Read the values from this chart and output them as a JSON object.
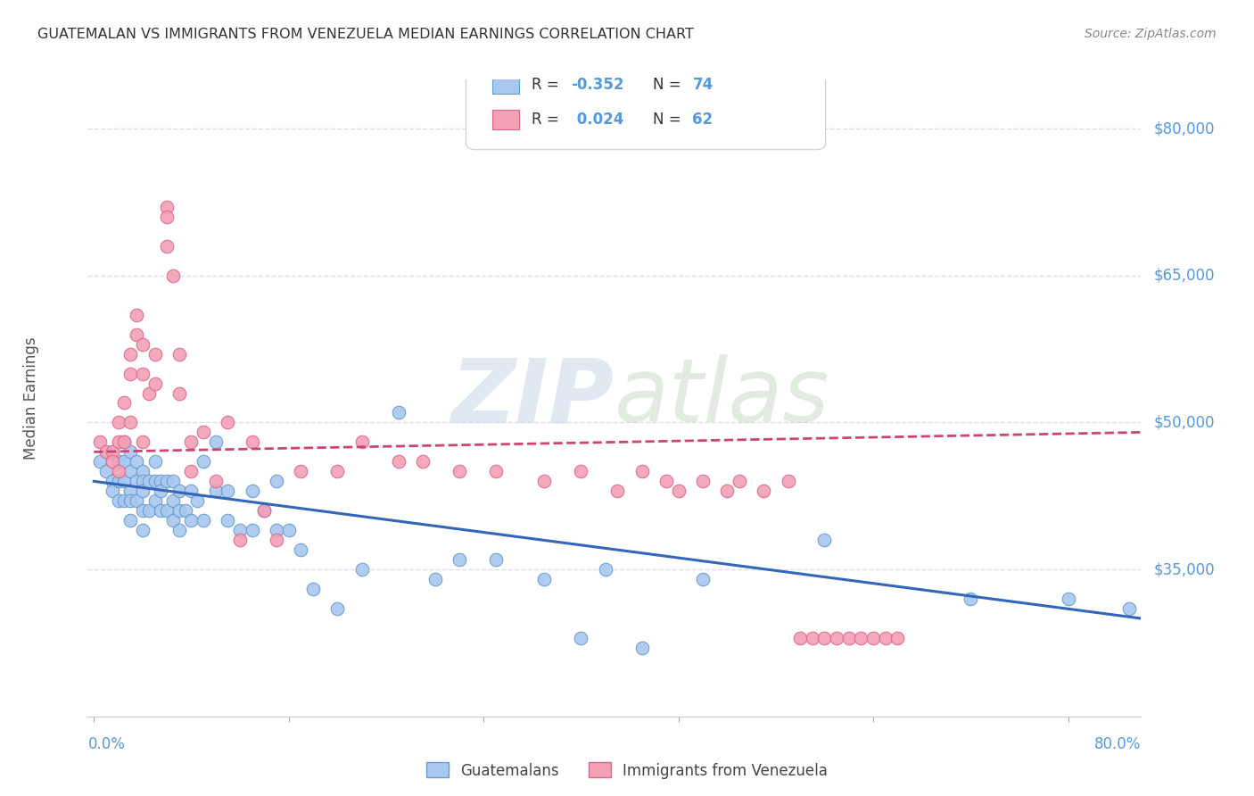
{
  "title": "GUATEMALAN VS IMMIGRANTS FROM VENEZUELA MEDIAN EARNINGS CORRELATION CHART",
  "source": "Source: ZipAtlas.com",
  "ylabel": "Median Earnings",
  "ymin": 20000,
  "ymax": 85000,
  "xmin": -0.005,
  "xmax": 0.86,
  "watermark_zip": "ZIP",
  "watermark_atlas": "atlas",
  "blue_color": "#A8C8F0",
  "pink_color": "#F4A0B5",
  "blue_edge_color": "#6699CC",
  "pink_edge_color": "#DD6688",
  "blue_line_color": "#3366BB",
  "pink_line_color": "#CC4477",
  "grid_color": "#DDDDEE",
  "axis_label_color": "#5599DD",
  "title_color": "#333333",
  "blue_scatter_x": [
    0.005,
    0.01,
    0.015,
    0.015,
    0.02,
    0.02,
    0.02,
    0.025,
    0.025,
    0.025,
    0.025,
    0.03,
    0.03,
    0.03,
    0.03,
    0.03,
    0.035,
    0.035,
    0.035,
    0.04,
    0.04,
    0.04,
    0.04,
    0.04,
    0.045,
    0.045,
    0.05,
    0.05,
    0.05,
    0.055,
    0.055,
    0.055,
    0.06,
    0.06,
    0.065,
    0.065,
    0.065,
    0.07,
    0.07,
    0.07,
    0.075,
    0.08,
    0.08,
    0.085,
    0.09,
    0.09,
    0.1,
    0.1,
    0.11,
    0.11,
    0.12,
    0.13,
    0.13,
    0.14,
    0.15,
    0.15,
    0.16,
    0.17,
    0.18,
    0.2,
    0.22,
    0.25,
    0.28,
    0.3,
    0.33,
    0.37,
    0.4,
    0.42,
    0.45,
    0.5,
    0.6,
    0.72,
    0.8,
    0.85
  ],
  "blue_scatter_y": [
    46000,
    45000,
    44000,
    43000,
    46000,
    44000,
    42000,
    48000,
    46000,
    44000,
    42000,
    47000,
    45000,
    43000,
    42000,
    40000,
    46000,
    44000,
    42000,
    45000,
    44000,
    43000,
    41000,
    39000,
    44000,
    41000,
    46000,
    44000,
    42000,
    44000,
    43000,
    41000,
    44000,
    41000,
    44000,
    42000,
    40000,
    43000,
    41000,
    39000,
    41000,
    43000,
    40000,
    42000,
    46000,
    40000,
    48000,
    43000,
    43000,
    40000,
    39000,
    43000,
    39000,
    41000,
    44000,
    39000,
    39000,
    37000,
    33000,
    31000,
    35000,
    51000,
    34000,
    36000,
    36000,
    34000,
    28000,
    35000,
    27000,
    34000,
    38000,
    32000,
    32000,
    31000
  ],
  "pink_scatter_x": [
    0.005,
    0.01,
    0.015,
    0.015,
    0.02,
    0.02,
    0.02,
    0.025,
    0.025,
    0.03,
    0.03,
    0.03,
    0.035,
    0.035,
    0.04,
    0.04,
    0.04,
    0.045,
    0.05,
    0.05,
    0.06,
    0.06,
    0.06,
    0.065,
    0.07,
    0.07,
    0.08,
    0.08,
    0.09,
    0.1,
    0.11,
    0.12,
    0.13,
    0.14,
    0.15,
    0.17,
    0.2,
    0.22,
    0.25,
    0.27,
    0.3,
    0.33,
    0.37,
    0.4,
    0.43,
    0.45,
    0.47,
    0.48,
    0.5,
    0.52,
    0.53,
    0.55,
    0.57,
    0.58,
    0.59,
    0.6,
    0.61,
    0.62,
    0.63,
    0.64,
    0.65,
    0.66
  ],
  "pink_scatter_y": [
    48000,
    47000,
    47000,
    46000,
    50000,
    48000,
    45000,
    52000,
    48000,
    57000,
    55000,
    50000,
    61000,
    59000,
    58000,
    55000,
    48000,
    53000,
    57000,
    54000,
    72000,
    71000,
    68000,
    65000,
    57000,
    53000,
    48000,
    45000,
    49000,
    44000,
    50000,
    38000,
    48000,
    41000,
    38000,
    45000,
    45000,
    48000,
    46000,
    46000,
    45000,
    45000,
    44000,
    45000,
    43000,
    45000,
    44000,
    43000,
    44000,
    43000,
    44000,
    43000,
    44000,
    28000,
    28000,
    28000,
    28000,
    28000,
    28000,
    28000,
    28000,
    28000
  ],
  "blue_line_x": [
    0.0,
    0.86
  ],
  "blue_line_y": [
    44000,
    30000
  ],
  "pink_line_x": [
    0.0,
    0.86
  ],
  "pink_line_y": [
    47000,
    49000
  ]
}
